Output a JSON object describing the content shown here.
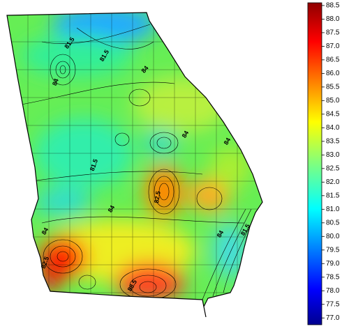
{
  "map": {
    "contour_labels": [
      81.5,
      81.5,
      84,
      84,
      84,
      84,
      81.5,
      82.5,
      84,
      84,
      84,
      81.5,
      82.5,
      88.5
    ],
    "colorbar": {
      "range": [
        76.75,
        88.6
      ],
      "ticks": [
        {
          "value": 77,
          "label": "77.0"
        },
        77.5,
        {
          "value": 78,
          "label": "78.0"
        },
        78.5,
        {
          "value": 79,
          "label": "79.0"
        },
        79.5,
        {
          "value": 80,
          "label": "80.0"
        },
        80.5,
        {
          "value": 81,
          "label": "81.0"
        },
        81.5,
        {
          "value": 82,
          "label": "82.0"
        },
        82.5,
        {
          "value": 83,
          "label": "83.0"
        },
        83.5,
        {
          "value": 84,
          "label": "84.0"
        },
        84.5,
        {
          "value": 85,
          "label": "85.0"
        },
        85.5,
        {
          "value": 86,
          "label": "86.0"
        },
        86.5,
        {
          "value": 87,
          "label": "87.0"
        },
        87.5,
        {
          "value": 88,
          "label": "88.0"
        },
        88.5
      ]
    }
  }
}
